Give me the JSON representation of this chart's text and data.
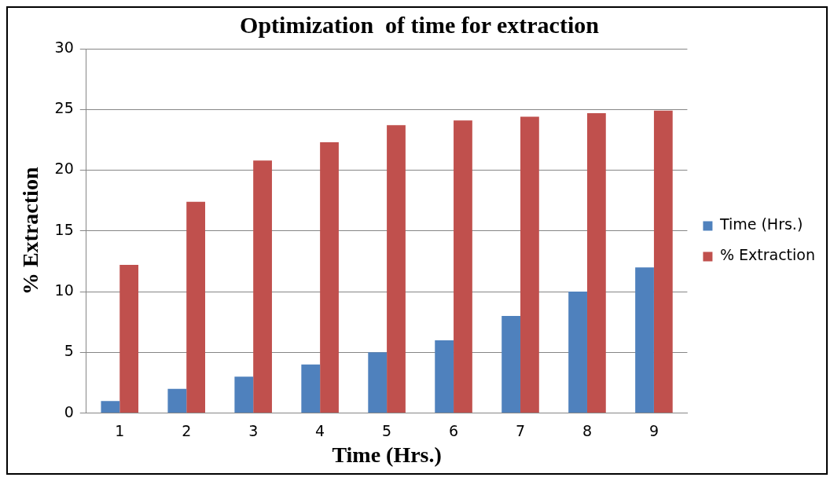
{
  "chart_data": {
    "type": "bar",
    "title": "Optimization  of time for extraction",
    "xlabel": "Time (Hrs.)",
    "ylabel": "% Extraction",
    "categories": [
      "1",
      "2",
      "3",
      "4",
      "5",
      "6",
      "7",
      "8",
      "9"
    ],
    "series": [
      {
        "name": "Time (Hrs.)",
        "color": "#4f81bd",
        "values": [
          1,
          2,
          3,
          4,
          5,
          6,
          8,
          10,
          12
        ]
      },
      {
        "name": "% Extraction",
        "color": "#c0504d",
        "values": [
          12.2,
          17.4,
          20.8,
          22.3,
          23.7,
          24.1,
          24.4,
          24.7,
          24.9
        ]
      }
    ],
    "ylim": [
      0,
      30
    ],
    "yticks": [
      0,
      5,
      10,
      15,
      20,
      25,
      30
    ],
    "grid": "y",
    "legend": "right"
  }
}
